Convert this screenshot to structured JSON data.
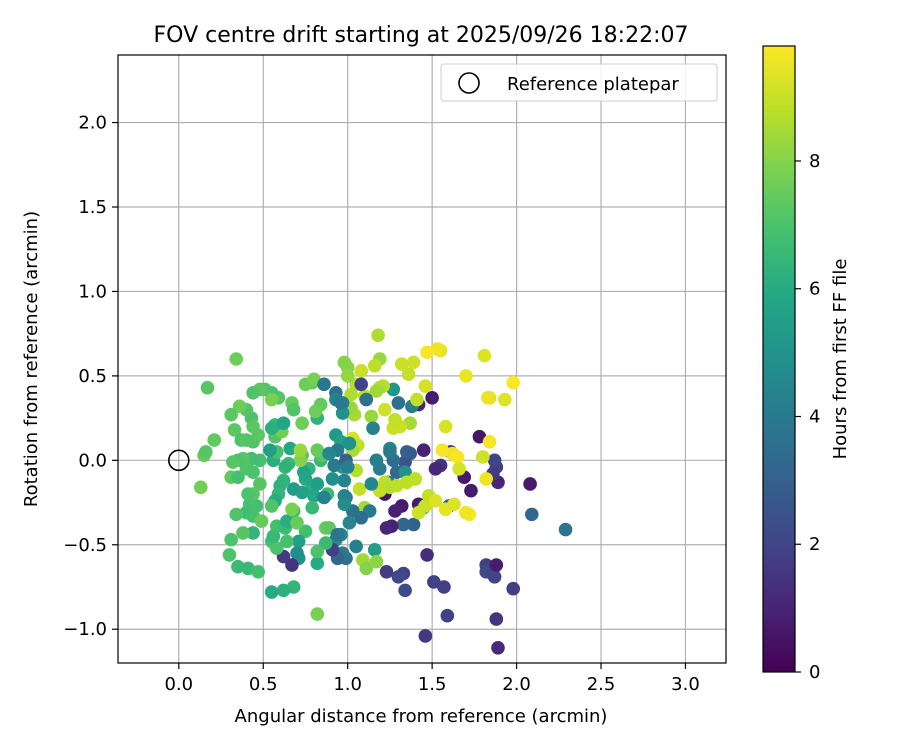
{
  "chart_data": {
    "type": "scatter",
    "title": "FOV centre drift starting at 2025/09/26 18:22:07",
    "xlabel": "Angular distance from reference (arcmin)",
    "ylabel": "Rotation from reference (arcmin)",
    "xlim": [
      -0.36,
      3.24
    ],
    "ylim": [
      -1.2,
      2.4
    ],
    "xticks": [
      "0.0",
      "0.5",
      "1.0",
      "1.5",
      "2.0",
      "2.5",
      "3.0"
    ],
    "xtick_values": [
      0,
      0.5,
      1,
      1.5,
      2,
      2.5,
      3
    ],
    "yticks": [
      "−1.0",
      "−0.5",
      "0.0",
      "0.5",
      "1.0",
      "1.5",
      "2.0"
    ],
    "ytick_values": [
      -1,
      -0.5,
      0,
      0.5,
      1,
      1.5,
      2
    ],
    "grid": true,
    "legend": {
      "position": "top-right",
      "label": "Reference platepar"
    },
    "reference_point": {
      "x": 0.0,
      "y": 0.0
    },
    "colorbar": {
      "label": "Hours from first FF file",
      "min": 0,
      "max": 9.8,
      "ticks": [
        "0",
        "2",
        "4",
        "6",
        "8"
      ],
      "tick_values": [
        0,
        2,
        4,
        6,
        8
      ],
      "colormap": "viridis"
    },
    "points": [
      [
        1.89,
        -1.11,
        1.2
      ],
      [
        1.88,
        -0.94,
        1.5
      ],
      [
        1.46,
        -1.04,
        1.6
      ],
      [
        1.98,
        -0.76,
        1.8
      ],
      [
        1.59,
        -0.92,
        1.9
      ],
      [
        1.57,
        -0.75,
        1.8
      ],
      [
        1.51,
        -0.72,
        1.9
      ],
      [
        1.33,
        -0.67,
        2.0
      ],
      [
        1.3,
        -0.69,
        2.1
      ],
      [
        1.34,
        -0.77,
        2.2
      ],
      [
        1.82,
        -0.62,
        1.8
      ],
      [
        1.82,
        -0.66,
        2.2
      ],
      [
        1.86,
        -0.67,
        2.1
      ],
      [
        1.87,
        -0.69,
        2.0
      ],
      [
        1.88,
        -0.62,
        0.8
      ],
      [
        1.47,
        -0.56,
        1.3
      ],
      [
        2.09,
        -0.32,
        3.3
      ],
      [
        2.29,
        -0.41,
        3.8
      ],
      [
        2.08,
        -0.14,
        0.7
      ],
      [
        1.89,
        -0.13,
        1.0
      ],
      [
        1.88,
        -0.04,
        1.8
      ],
      [
        1.87,
        0.0,
        2.0
      ],
      [
        1.86,
        -0.08,
        1.7
      ],
      [
        1.78,
        0.14,
        0.6
      ],
      [
        1.73,
        -0.18,
        0.7
      ],
      [
        1.69,
        -0.1,
        0.7
      ],
      [
        1.61,
        0.05,
        1.0
      ],
      [
        1.55,
        -0.03,
        1.5
      ],
      [
        1.52,
        -0.05,
        1.1
      ],
      [
        1.5,
        0.37,
        0.8
      ],
      [
        1.45,
        0.06,
        0.9
      ],
      [
        1.42,
        0.33,
        1.0
      ],
      [
        1.39,
        -0.38,
        3.1
      ],
      [
        1.33,
        -0.38,
        3.2
      ],
      [
        1.37,
        0.04,
        2.8
      ],
      [
        1.34,
        -0.01,
        2.5
      ],
      [
        1.35,
        0.05,
        2.9
      ],
      [
        1.29,
        -0.07,
        3.3
      ],
      [
        1.27,
        0.0,
        3.5
      ],
      [
        1.24,
        -0.13,
        3.9
      ],
      [
        1.22,
        -0.2,
        0.6
      ],
      [
        1.3,
        0.34,
        3.6
      ],
      [
        1.27,
        0.42,
        5.1
      ],
      [
        1.25,
        0.07,
        4.5
      ],
      [
        1.38,
        0.32,
        4.1
      ],
      [
        1.26,
        -0.39,
        0.9
      ],
      [
        1.34,
        -0.07,
        5.0
      ],
      [
        1.32,
        -0.27,
        0.7
      ],
      [
        1.28,
        -0.3,
        0.9
      ],
      [
        1.23,
        -0.4,
        1.1
      ],
      [
        1.42,
        -0.26,
        0.7
      ],
      [
        1.45,
        -0.28,
        4.9
      ],
      [
        1.6,
        -0.27,
        3.0
      ],
      [
        1.58,
        0.2,
        9.2
      ],
      [
        1.62,
        0.04,
        9.6
      ],
      [
        1.56,
        0.06,
        9.7
      ],
      [
        1.65,
        0.02,
        9.7
      ],
      [
        1.58,
        -0.29,
        9.4
      ],
      [
        1.72,
        -0.32,
        9.7
      ],
      [
        1.7,
        -0.31,
        9.6
      ],
      [
        1.63,
        -0.26,
        9.3
      ],
      [
        1.66,
        -0.05,
        9.2
      ],
      [
        1.7,
        0.5,
        9.5
      ],
      [
        1.82,
        -0.11,
        9.6
      ],
      [
        1.8,
        0.02,
        9.1
      ],
      [
        1.84,
        0.11,
        9.7
      ],
      [
        1.84,
        0.37,
        9.3
      ],
      [
        1.83,
        0.37,
        9.5
      ],
      [
        1.93,
        0.36,
        9.3
      ],
      [
        1.98,
        0.46,
        9.8
      ],
      [
        1.81,
        0.62,
        9.3
      ],
      [
        1.55,
        0.65,
        9.4
      ],
      [
        1.53,
        0.66,
        9.6
      ],
      [
        1.47,
        0.64,
        9.7
      ],
      [
        1.46,
        0.44,
        9.2
      ],
      [
        1.41,
        0.36,
        8.9
      ],
      [
        1.39,
        0.58,
        9.1
      ],
      [
        1.36,
        0.51,
        8.9
      ],
      [
        1.32,
        0.57,
        9.0
      ],
      [
        1.3,
        0.2,
        9.0
      ],
      [
        1.27,
        0.19,
        9.0
      ],
      [
        1.19,
        0.6,
        8.3
      ],
      [
        1.18,
        0.74,
        8.6
      ],
      [
        1.16,
        0.56,
        8.8
      ],
      [
        1.14,
        0.26,
        8.3
      ],
      [
        1.21,
        0.44,
        8.8
      ],
      [
        1.19,
        0.43,
        8.6
      ],
      [
        1.17,
        0.41,
        8.4
      ],
      [
        1.1,
        0.38,
        8.8
      ],
      [
        1.08,
        0.53,
        9.0
      ],
      [
        1.05,
        0.45,
        8.7
      ],
      [
        1.02,
        0.39,
        8.6
      ],
      [
        1.0,
        0.55,
        8.0
      ],
      [
        0.98,
        0.58,
        8.0
      ],
      [
        1.0,
        0.5,
        8.2
      ],
      [
        1.04,
        0.27,
        8.5
      ],
      [
        1.02,
        0.31,
        8.3
      ],
      [
        1.03,
        0.13,
        9.2
      ],
      [
        1.06,
        0.09,
        8.9
      ],
      [
        1.03,
        0.06,
        8.5
      ],
      [
        1.05,
        -0.06,
        8.7
      ],
      [
        1.07,
        -0.17,
        8.9
      ],
      [
        1.1,
        -0.28,
        8.5
      ],
      [
        1.12,
        -0.3,
        8.3
      ],
      [
        1.19,
        -0.18,
        8.9
      ],
      [
        1.22,
        -0.13,
        8.8
      ],
      [
        1.25,
        -0.16,
        8.7
      ],
      [
        1.29,
        -0.15,
        8.8
      ],
      [
        1.35,
        -0.13,
        8.8
      ],
      [
        1.4,
        -0.11,
        8.8
      ],
      [
        1.42,
        -0.31,
        9.1
      ],
      [
        1.46,
        -0.27,
        9.0
      ],
      [
        1.48,
        -0.21,
        8.9
      ],
      [
        1.52,
        -0.24,
        9.3
      ],
      [
        1.37,
        0.22,
        8.5
      ],
      [
        1.31,
        0.2,
        9.0
      ],
      [
        1.22,
        0.3,
        9.1
      ],
      [
        1.28,
        0.24,
        8.9
      ],
      [
        1.25,
        0.05,
        4.0
      ],
      [
        1.17,
        0.0,
        4.2
      ],
      [
        1.19,
        -0.05,
        4.1
      ],
      [
        1.14,
        -0.14,
        4.5
      ],
      [
        1.15,
        0.19,
        4.3
      ],
      [
        1.11,
        0.36,
        3.6
      ],
      [
        1.08,
        0.45,
        2.0
      ],
      [
        1.13,
        -0.3,
        4.0
      ],
      [
        1.08,
        -0.34,
        3.5
      ],
      [
        1.03,
        -0.3,
        3.7
      ],
      [
        0.99,
        -0.22,
        4.0
      ],
      [
        0.98,
        -0.12,
        4.4
      ],
      [
        0.98,
        -0.21,
        4.3
      ],
      [
        0.97,
        0.34,
        4.3
      ],
      [
        0.97,
        0.28,
        4.9
      ],
      [
        0.93,
        0.15,
        5.2
      ],
      [
        0.96,
        0.11,
        5.6
      ],
      [
        0.97,
        -0.04,
        5.3
      ],
      [
        0.99,
        -0.58,
        3.6
      ],
      [
        0.97,
        -0.55,
        3.9
      ],
      [
        0.96,
        -0.44,
        4.4
      ],
      [
        0.93,
        -0.47,
        4.6
      ],
      [
        0.94,
        -0.58,
        3.2
      ],
      [
        1.01,
        -0.37,
        4.5
      ],
      [
        1.05,
        -0.51,
        4.2
      ],
      [
        1.16,
        -0.53,
        5.4
      ],
      [
        1.09,
        -0.59,
        8.4
      ],
      [
        1.11,
        -0.64,
        8.0
      ],
      [
        1.17,
        -0.6,
        8.1
      ],
      [
        1.23,
        -0.66,
        1.7
      ],
      [
        0.91,
        -0.53,
        1.9
      ],
      [
        0.87,
        -0.49,
        6.6
      ],
      [
        0.87,
        -0.4,
        7.5
      ],
      [
        0.89,
        -0.4,
        7.3
      ],
      [
        0.82,
        -0.61,
        6.0
      ],
      [
        0.82,
        -0.54,
        7.0
      ],
      [
        0.82,
        -0.91,
        7.8
      ],
      [
        0.88,
        -0.2,
        6.7
      ],
      [
        0.84,
        0.0,
        6.5
      ],
      [
        0.85,
        0.03,
        7.2
      ],
      [
        0.82,
        0.06,
        7.5
      ],
      [
        0.84,
        0.33,
        7.4
      ],
      [
        0.82,
        0.25,
        6.3
      ],
      [
        0.81,
        0.29,
        7.6
      ],
      [
        0.79,
        0.46,
        7.4
      ],
      [
        0.75,
        0.45,
        7.6
      ],
      [
        0.8,
        0.48,
        7.8
      ],
      [
        0.77,
        -0.05,
        6.4
      ],
      [
        0.78,
        -0.18,
        6.1
      ],
      [
        0.8,
        -0.21,
        5.9
      ],
      [
        0.79,
        -0.28,
        6.5
      ],
      [
        0.75,
        -0.42,
        6.8
      ],
      [
        0.71,
        -0.48,
        5.5
      ],
      [
        0.71,
        -0.58,
        5.0
      ],
      [
        0.7,
        -0.55,
        4.8
      ],
      [
        0.67,
        -0.62,
        1.5
      ],
      [
        0.62,
        -0.57,
        1.7
      ],
      [
        0.68,
        -0.75,
        6.4
      ],
      [
        0.62,
        -0.77,
        6.2
      ],
      [
        0.55,
        -0.78,
        6.0
      ],
      [
        0.55,
        -0.48,
        6.9
      ],
      [
        0.58,
        -0.52,
        7.0
      ],
      [
        0.56,
        -0.45,
        6.5
      ],
      [
        0.58,
        -0.39,
        6.8
      ],
      [
        0.63,
        -0.4,
        6.6
      ],
      [
        0.64,
        -0.36,
        6.1
      ],
      [
        0.68,
        -0.3,
        6.6
      ],
      [
        0.68,
        -0.17,
        5.4
      ],
      [
        0.73,
        -0.19,
        5.6
      ],
      [
        0.75,
        -0.11,
        5.9
      ],
      [
        0.74,
        -0.07,
        5.7
      ],
      [
        0.73,
        0.03,
        7.0
      ],
      [
        0.72,
        0.0,
        8.0
      ],
      [
        0.66,
        0.07,
        5.9
      ],
      [
        0.65,
        -0.02,
        6.5
      ],
      [
        0.63,
        -0.04,
        6.3
      ],
      [
        0.62,
        -0.12,
        6.4
      ],
      [
        0.6,
        -0.15,
        6.3
      ],
      [
        0.59,
        -0.2,
        6.4
      ],
      [
        0.57,
        -0.24,
        6.0
      ],
      [
        0.55,
        -0.27,
        7.1
      ],
      [
        0.56,
        0.0,
        6.1
      ],
      [
        0.58,
        0.05,
        6.9
      ],
      [
        0.57,
        0.14,
        7.1
      ],
      [
        0.61,
        0.17,
        7.7
      ],
      [
        0.57,
        0.21,
        6.5
      ],
      [
        0.55,
        0.19,
        6.2
      ],
      [
        0.54,
        0.06,
        5.5
      ],
      [
        0.67,
        0.34,
        7.5
      ],
      [
        0.68,
        0.3,
        7.1
      ],
      [
        0.59,
        0.37,
        7.2
      ],
      [
        0.55,
        0.4,
        7.0
      ],
      [
        0.51,
        0.42,
        7.1
      ],
      [
        0.48,
        0.42,
        7.3
      ],
      [
        0.44,
        0.4,
        7.1
      ],
      [
        0.43,
        0.25,
        7.0
      ],
      [
        0.4,
        0.3,
        7.2
      ],
      [
        0.36,
        0.32,
        7.6
      ],
      [
        0.31,
        0.27,
        7.3
      ],
      [
        0.33,
        0.18,
        7.3
      ],
      [
        0.37,
        0.12,
        7.0
      ],
      [
        0.4,
        0.12,
        7.2
      ],
      [
        0.44,
        0.11,
        7.1
      ],
      [
        0.44,
        0.2,
        7.3
      ],
      [
        0.47,
        0.15,
        7.3
      ],
      [
        0.48,
        0.0,
        6.9
      ],
      [
        0.43,
        0.01,
        6.8
      ],
      [
        0.38,
        0.01,
        7.2
      ],
      [
        0.35,
        0.0,
        7.0
      ],
      [
        0.32,
        -0.01,
        7.2
      ],
      [
        0.31,
        -0.1,
        7.4
      ],
      [
        0.35,
        -0.1,
        6.9
      ],
      [
        0.4,
        -0.05,
        7.1
      ],
      [
        0.44,
        -0.07,
        7.0
      ],
      [
        0.48,
        -0.14,
        7.2
      ],
      [
        0.46,
        -0.27,
        6.8
      ],
      [
        0.42,
        -0.26,
        6.9
      ],
      [
        0.44,
        -0.2,
        7.2
      ],
      [
        0.41,
        -0.2,
        7.0
      ],
      [
        0.4,
        -0.31,
        6.8
      ],
      [
        0.44,
        -0.33,
        6.9
      ],
      [
        0.49,
        -0.36,
        7.5
      ],
      [
        0.44,
        -0.43,
        6.4
      ],
      [
        0.38,
        -0.43,
        7.2
      ],
      [
        0.34,
        -0.32,
        7.1
      ],
      [
        0.31,
        -0.47,
        7.0
      ],
      [
        0.3,
        -0.56,
        7.0
      ],
      [
        0.35,
        -0.63,
        6.6
      ],
      [
        0.41,
        -0.64,
        6.5
      ],
      [
        0.47,
        -0.66,
        6.8
      ],
      [
        0.34,
        0.6,
        7.6
      ],
      [
        0.17,
        0.43,
        7.2
      ],
      [
        0.21,
        0.12,
        7.4
      ],
      [
        0.15,
        0.03,
        7.5
      ],
      [
        0.16,
        0.05,
        7.2
      ],
      [
        0.13,
        -0.16,
        7.7
      ],
      [
        0.55,
        0.36,
        7.8
      ],
      [
        0.62,
        0.22,
        5.8
      ],
      [
        0.73,
        0.22,
        7.6
      ],
      [
        0.7,
        -0.37,
        7.5
      ],
      [
        0.64,
        -0.48,
        6.9
      ],
      [
        0.67,
        -0.29,
        7.8
      ],
      [
        0.72,
        0.06,
        8.3
      ],
      [
        0.82,
        -0.14,
        5.5
      ],
      [
        0.86,
        -0.22,
        4.3
      ],
      [
        0.92,
        -0.03,
        4.0
      ],
      [
        0.94,
        0.06,
        4.0
      ],
      [
        0.89,
        0.04,
        4.5
      ],
      [
        0.91,
        -0.11,
        4.9
      ],
      [
        1.01,
        0.1,
        5.0
      ],
      [
        0.99,
        0.0,
        3.1
      ],
      [
        1.0,
        -0.04,
        4.2
      ],
      [
        0.98,
        -0.26,
        4.7
      ],
      [
        0.94,
        -0.44,
        3.8
      ],
      [
        0.93,
        0.4,
        3.7
      ],
      [
        0.93,
        0.36,
        4.3
      ],
      [
        0.96,
        0.34,
        4.0
      ],
      [
        0.86,
        0.45,
        3.8
      ]
    ]
  }
}
